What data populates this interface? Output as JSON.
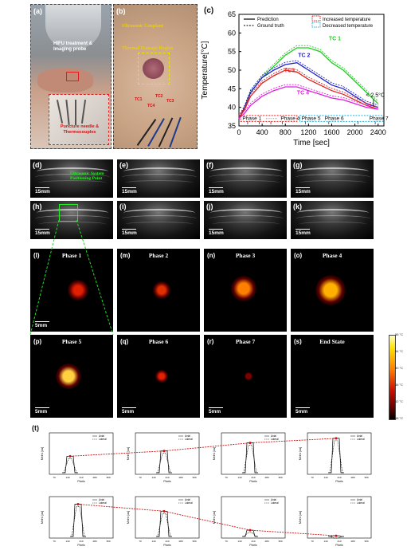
{
  "panels": {
    "a": {
      "letter": "(a)",
      "label_probe": "HIFU treatment & Imaging probe",
      "label_needle": "Puncture needle & Thermocouples"
    },
    "b": {
      "letter": "(b)",
      "label_coupler": "Ultrasonic Couplant",
      "label_damage": "Thermal Damage Region",
      "tc_labels": [
        "TC1",
        "TC2",
        "TC3",
        "TC4"
      ]
    },
    "c": {
      "letter": "(c)"
    },
    "d": {
      "letter": "(d)",
      "scale": "15mm",
      "label": "Ultrasonic System Positioning Point"
    },
    "e": {
      "letter": "(e)",
      "scale": "15mm"
    },
    "f": {
      "letter": "(f)",
      "scale": "15mm"
    },
    "g": {
      "letter": "(g)",
      "scale": "15mm"
    },
    "h": {
      "letter": "(h)",
      "scale": "15mm"
    },
    "i": {
      "letter": "(i)",
      "scale": "15mm"
    },
    "j": {
      "letter": "(j)",
      "scale": "15mm"
    },
    "k": {
      "letter": "(k)",
      "scale": "15mm"
    },
    "l": {
      "letter": "(l)",
      "phase": "Phase 1",
      "scale": "5mm"
    },
    "m": {
      "letter": "(m)",
      "phase": "Phase 2"
    },
    "n": {
      "letter": "(n)",
      "phase": "Phase 3"
    },
    "o": {
      "letter": "(o)",
      "phase": "Phase 4"
    },
    "p": {
      "letter": "(p)",
      "phase": "Phase 5",
      "scale": "5mm"
    },
    "q": {
      "letter": "(q)",
      "phase": "Phase 6",
      "scale": "5mm"
    },
    "r": {
      "letter": "(r)",
      "phase": "Phase 7",
      "scale": "5mm"
    },
    "s": {
      "letter": "(s)",
      "phase": "End State",
      "scale": "5mm"
    },
    "t": {
      "letter": "(t)"
    }
  },
  "colorbar": {
    "ticks": [
      "56 °C",
      "54 °C",
      "50 °C",
      "46 °C",
      "42 °C",
      "38 °C"
    ],
    "colors": [
      "#ffffb0",
      "#ffe000",
      "#ff8000",
      "#e02000",
      "#a00000",
      "#400000",
      "#000000"
    ]
  },
  "chart_data": [
    {
      "id": "c",
      "type": "line",
      "xlabel": "Time [sec]",
      "ylabel": "Temperature[°C]",
      "xlim": [
        0,
        2500
      ],
      "ylim": [
        35,
        65
      ],
      "xticks": [
        0,
        400,
        800,
        1200,
        1600,
        2000,
        2400
      ],
      "yticks": [
        35,
        40,
        45,
        50,
        55,
        60,
        65
      ],
      "legend": {
        "prediction": "Prediction",
        "ground_truth": "Ground truth",
        "increased": "Increased temperature",
        "decreased": "Decreased temperature"
      },
      "annotation": "< 2.5°C",
      "phases_increase": [
        "Phase 1",
        "Phase 4"
      ],
      "phases_decrease": [
        "Phase 5",
        "Phase 6",
        "Phase 7"
      ],
      "series": [
        {
          "name": "TC 1",
          "color": "#22cc22",
          "x": [
            0,
            100,
            200,
            400,
            600,
            800,
            1000,
            1200,
            1400,
            1600,
            1800,
            2000,
            2200,
            2400
          ],
          "y": [
            37,
            40,
            44,
            48,
            51,
            54,
            56,
            56,
            55,
            52,
            50,
            47,
            44,
            41
          ]
        },
        {
          "name": "TC 2",
          "color": "#2222cc",
          "x": [
            0,
            100,
            200,
            400,
            600,
            800,
            1000,
            1200,
            1400,
            1600,
            1800,
            2000,
            2200,
            2400
          ],
          "y": [
            37,
            40,
            44,
            48,
            50,
            51.5,
            52,
            50,
            48,
            46,
            45,
            43,
            41,
            40
          ]
        },
        {
          "name": "TC3",
          "color": "#dd2222",
          "x": [
            0,
            100,
            200,
            400,
            600,
            800,
            1000,
            1200,
            1400,
            1600,
            1800,
            2000,
            2200,
            2400
          ],
          "y": [
            37,
            39.5,
            43,
            46.5,
            48.5,
            50,
            49.5,
            47.5,
            46,
            44.5,
            43.5,
            42,
            40.5,
            39.5
          ]
        },
        {
          "name": "TC 4",
          "color": "#dd22dd",
          "x": [
            0,
            100,
            200,
            400,
            600,
            800,
            1000,
            1200,
            1400,
            1600,
            1800,
            2000,
            2200,
            2400
          ],
          "y": [
            37,
            38.5,
            40.5,
            43,
            44.5,
            45.5,
            45.5,
            44.5,
            43.5,
            42.5,
            42,
            41,
            40,
            39.5
          ]
        }
      ]
    },
    {
      "id": "t",
      "type": "line",
      "xlabel": "Pixels",
      "ylabel": "Metric [au]",
      "legend": [
        "Axial",
        "Lateral"
      ],
      "xticks": [
        "70",
        "140",
        "210",
        "280",
        "350"
      ],
      "trend_values": [
        0.47,
        0.62,
        0.85,
        0.98,
        0.92,
        0.72,
        0.18,
        0.02
      ],
      "trend_color": "#cc1111"
    }
  ]
}
